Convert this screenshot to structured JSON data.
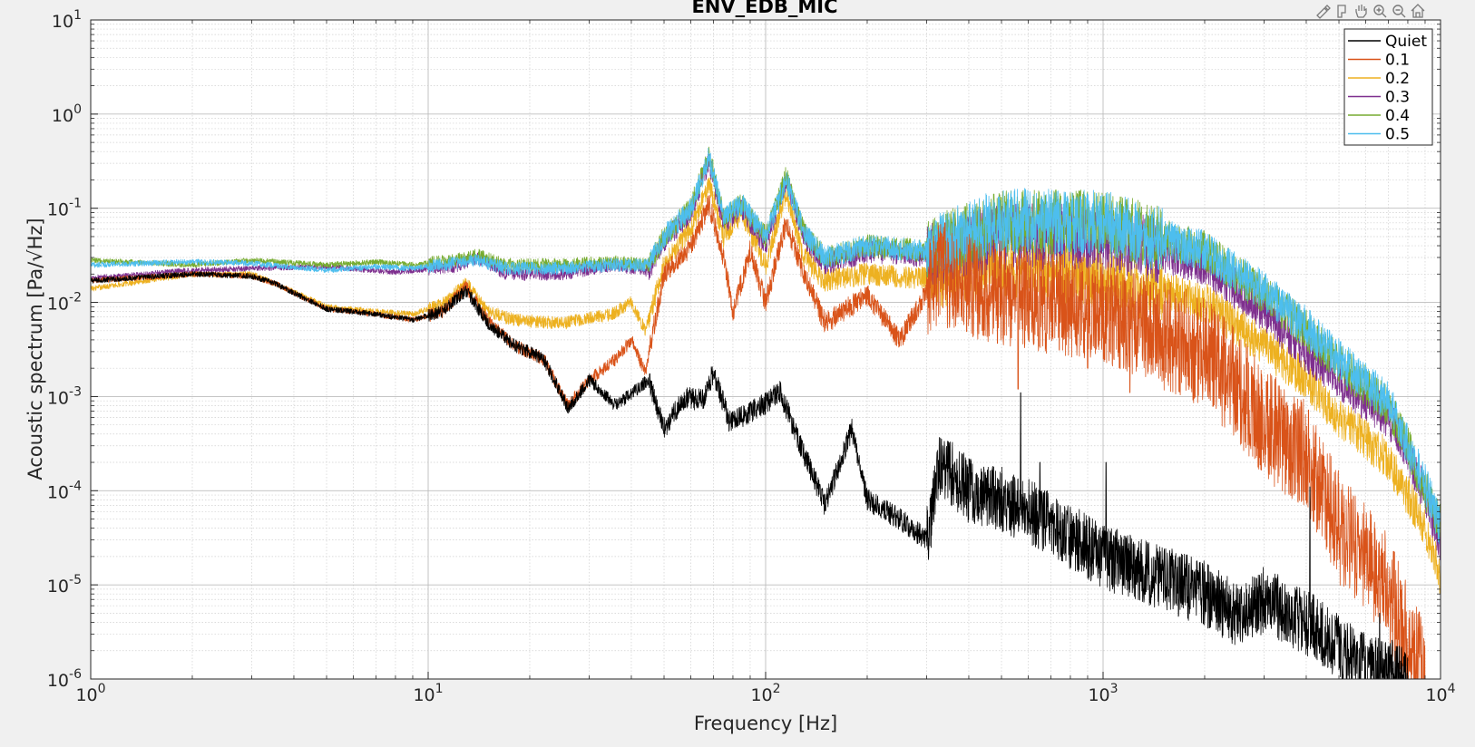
{
  "toolbar": {
    "icons": [
      "brush-icon",
      "datatip-icon",
      "pan-icon",
      "zoom-in-icon",
      "zoom-out-icon",
      "home-icon"
    ]
  },
  "chart_data": {
    "type": "line",
    "title": "ENV_EDB_MIC",
    "xlabel": "Frequency [Hz]",
    "ylabel": "Acoustic spectrum [Pa/√Hz]",
    "x_scale": "log",
    "y_scale": "log",
    "xlim": [
      1,
      10000
    ],
    "ylim": [
      1e-06,
      10
    ],
    "x_ticks": [
      {
        "value": 1,
        "base": "10",
        "exp": "0"
      },
      {
        "value": 10,
        "base": "10",
        "exp": "1"
      },
      {
        "value": 100,
        "base": "10",
        "exp": "2"
      },
      {
        "value": 1000,
        "base": "10",
        "exp": "3"
      },
      {
        "value": 10000,
        "base": "10",
        "exp": "4"
      }
    ],
    "y_ticks": [
      {
        "value": 10,
        "base": "10",
        "exp": "1"
      },
      {
        "value": 1,
        "base": "10",
        "exp": "0"
      },
      {
        "value": 0.1,
        "base": "10",
        "exp": "-1"
      },
      {
        "value": 0.01,
        "base": "10",
        "exp": "-2"
      },
      {
        "value": 0.001,
        "base": "10",
        "exp": "-3"
      },
      {
        "value": 0.0001,
        "base": "10",
        "exp": "-4"
      },
      {
        "value": 1e-05,
        "base": "10",
        "exp": "-5"
      },
      {
        "value": 1e-06,
        "base": "10",
        "exp": "-6"
      }
    ],
    "grid": true,
    "minor_grid": true,
    "legend_position": "top-right",
    "series": [
      {
        "name": "Quiet",
        "color": "#000000",
        "points": [
          [
            1,
            0.017
          ],
          [
            2,
            0.02
          ],
          [
            3,
            0.019
          ],
          [
            3.5,
            0.016
          ],
          [
            5,
            0.0085
          ],
          [
            7,
            0.0075
          ],
          [
            9,
            0.0065
          ],
          [
            11,
            0.008
          ],
          [
            13,
            0.0135
          ],
          [
            15,
            0.006
          ],
          [
            18,
            0.0035
          ],
          [
            22,
            0.0025
          ],
          [
            26,
            0.00075
          ],
          [
            30,
            0.0015
          ],
          [
            36,
            0.0008
          ],
          [
            45,
            0.0015
          ],
          [
            50,
            0.00045
          ],
          [
            58,
            0.001
          ],
          [
            65,
            0.0009
          ],
          [
            70,
            0.0018
          ],
          [
            78,
            0.00055
          ],
          [
            85,
            0.0006
          ],
          [
            100,
            0.00085
          ],
          [
            110,
            0.00115
          ],
          [
            125,
            0.00035
          ],
          [
            150,
            7e-05
          ],
          [
            180,
            0.00045
          ],
          [
            200,
            8e-05
          ],
          [
            250,
            5e-05
          ],
          [
            300,
            3e-05
          ],
          [
            330,
            0.0002
          ],
          [
            400,
            0.0001
          ],
          [
            500,
            8e-05
          ],
          [
            600,
            6e-05
          ],
          [
            1000,
            2e-05
          ],
          [
            1500,
            1.2e-05
          ],
          [
            2000,
            8e-06
          ],
          [
            2600,
            4.5e-06
          ],
          [
            3000,
            7e-06
          ],
          [
            4000,
            4e-06
          ],
          [
            5000,
            2.2e-06
          ],
          [
            6000,
            1.4e-06
          ],
          [
            7000,
            1.2e-06
          ],
          [
            8000,
            1e-06
          ]
        ],
        "spikes": [
          [
            570,
            0.0011
          ],
          [
            650,
            0.0002
          ],
          [
            1020,
            0.0002
          ],
          [
            4100,
            0.00011
          ],
          [
            6600,
            5e-06
          ]
        ]
      },
      {
        "name": "0.1",
        "color": "#d95319",
        "points": [
          [
            1,
            0.017
          ],
          [
            2,
            0.02
          ],
          [
            3,
            0.019
          ],
          [
            3.5,
            0.016
          ],
          [
            5,
            0.0085
          ],
          [
            7,
            0.0075
          ],
          [
            9,
            0.0065
          ],
          [
            11,
            0.008
          ],
          [
            13,
            0.0145
          ],
          [
            15,
            0.0065
          ],
          [
            18,
            0.0035
          ],
          [
            22,
            0.0025
          ],
          [
            26,
            0.0008
          ],
          [
            30,
            0.0015
          ],
          [
            36,
            0.0025
          ],
          [
            40,
            0.004
          ],
          [
            44,
            0.0018
          ],
          [
            50,
            0.02
          ],
          [
            60,
            0.04
          ],
          [
            68,
            0.11
          ],
          [
            75,
            0.03
          ],
          [
            80,
            0.008
          ],
          [
            90,
            0.035
          ],
          [
            100,
            0.01
          ],
          [
            115,
            0.07
          ],
          [
            130,
            0.02
          ],
          [
            150,
            0.006
          ],
          [
            200,
            0.012
          ],
          [
            250,
            0.004
          ],
          [
            320,
            0.02
          ],
          [
            400,
            0.015
          ],
          [
            600,
            0.011
          ],
          [
            1000,
            0.008
          ],
          [
            1500,
            0.0045
          ],
          [
            2000,
            0.003
          ],
          [
            2500,
            0.0013
          ],
          [
            3000,
            0.0005
          ],
          [
            4000,
            0.00025
          ],
          [
            5000,
            4e-05
          ],
          [
            6000,
            1.8e-05
          ],
          [
            7000,
            9e-06
          ],
          [
            8000,
            2.5e-06
          ],
          [
            9000,
            1e-06
          ]
        ],
        "spikes": [
          [
            340,
            0.07
          ],
          [
            560,
            0.0012
          ],
          [
            900,
            0.002
          ],
          [
            1200,
            0.0011
          ]
        ]
      },
      {
        "name": "0.2",
        "color": "#edb120",
        "points": [
          [
            1,
            0.014
          ],
          [
            2,
            0.02
          ],
          [
            3,
            0.02
          ],
          [
            3.5,
            0.016
          ],
          [
            5,
            0.009
          ],
          [
            7,
            0.008
          ],
          [
            9,
            0.0075
          ],
          [
            11,
            0.0095
          ],
          [
            13,
            0.016
          ],
          [
            15,
            0.008
          ],
          [
            18,
            0.0065
          ],
          [
            25,
            0.006
          ],
          [
            35,
            0.0075
          ],
          [
            40,
            0.01
          ],
          [
            44,
            0.005
          ],
          [
            50,
            0.025
          ],
          [
            60,
            0.06
          ],
          [
            68,
            0.18
          ],
          [
            75,
            0.05
          ],
          [
            85,
            0.09
          ],
          [
            100,
            0.025
          ],
          [
            115,
            0.15
          ],
          [
            130,
            0.03
          ],
          [
            150,
            0.017
          ],
          [
            200,
            0.02
          ],
          [
            300,
            0.018
          ],
          [
            500,
            0.025
          ],
          [
            1000,
            0.018
          ],
          [
            2000,
            0.01
          ],
          [
            3000,
            0.0035
          ],
          [
            4000,
            0.0015
          ],
          [
            5000,
            0.0006
          ],
          [
            6000,
            0.00035
          ],
          [
            7000,
            0.00021
          ],
          [
            8000,
            9e-05
          ],
          [
            9000,
            4e-05
          ],
          [
            10000,
            1.2e-05
          ]
        ],
        "spikes": []
      },
      {
        "name": "0.3",
        "color": "#7e2f8e",
        "points": [
          [
            1,
            0.018
          ],
          [
            2,
            0.022
          ],
          [
            3,
            0.023
          ],
          [
            5,
            0.024
          ],
          [
            8,
            0.021
          ],
          [
            12,
            0.024
          ],
          [
            14,
            0.03
          ],
          [
            17,
            0.02
          ],
          [
            25,
            0.02
          ],
          [
            35,
            0.025
          ],
          [
            45,
            0.022
          ],
          [
            50,
            0.045
          ],
          [
            60,
            0.09
          ],
          [
            68,
            0.32
          ],
          [
            75,
            0.07
          ],
          [
            85,
            0.1
          ],
          [
            100,
            0.04
          ],
          [
            115,
            0.2
          ],
          [
            130,
            0.05
          ],
          [
            150,
            0.025
          ],
          [
            200,
            0.035
          ],
          [
            300,
            0.03
          ],
          [
            500,
            0.05
          ],
          [
            1000,
            0.05
          ],
          [
            2000,
            0.025
          ],
          [
            3000,
            0.008
          ],
          [
            4000,
            0.003
          ],
          [
            5000,
            0.0015
          ],
          [
            6000,
            0.0009
          ],
          [
            7000,
            0.0006
          ],
          [
            8000,
            0.00025
          ],
          [
            9000,
            9e-05
          ],
          [
            10000,
            2.8e-05
          ]
        ],
        "spikes": []
      },
      {
        "name": "0.4",
        "color": "#77ac30",
        "points": [
          [
            1,
            0.028
          ],
          [
            2,
            0.025
          ],
          [
            3,
            0.028
          ],
          [
            5,
            0.025
          ],
          [
            7,
            0.027
          ],
          [
            9,
            0.025
          ],
          [
            12,
            0.028
          ],
          [
            14,
            0.032
          ],
          [
            17,
            0.025
          ],
          [
            25,
            0.025
          ],
          [
            35,
            0.027
          ],
          [
            45,
            0.025
          ],
          [
            50,
            0.05
          ],
          [
            60,
            0.1
          ],
          [
            68,
            0.38
          ],
          [
            75,
            0.08
          ],
          [
            85,
            0.11
          ],
          [
            100,
            0.05
          ],
          [
            115,
            0.22
          ],
          [
            130,
            0.055
          ],
          [
            150,
            0.03
          ],
          [
            200,
            0.04
          ],
          [
            300,
            0.035
          ],
          [
            500,
            0.07
          ],
          [
            1000,
            0.07
          ],
          [
            2000,
            0.035
          ],
          [
            3000,
            0.012
          ],
          [
            4000,
            0.005
          ],
          [
            5000,
            0.0022
          ],
          [
            6000,
            0.0013
          ],
          [
            7000,
            0.0008
          ],
          [
            8000,
            0.0003
          ],
          [
            9000,
            0.0001
          ],
          [
            10000,
            4.5e-05
          ]
        ],
        "spikes": []
      },
      {
        "name": "0.5",
        "color": "#4dbeee",
        "points": [
          [
            1,
            0.025
          ],
          [
            2,
            0.027
          ],
          [
            3,
            0.026
          ],
          [
            5,
            0.022
          ],
          [
            7,
            0.024
          ],
          [
            9,
            0.023
          ],
          [
            12,
            0.026
          ],
          [
            14,
            0.028
          ],
          [
            17,
            0.023
          ],
          [
            25,
            0.023
          ],
          [
            35,
            0.025
          ],
          [
            45,
            0.025
          ],
          [
            50,
            0.05
          ],
          [
            60,
            0.1
          ],
          [
            68,
            0.35
          ],
          [
            75,
            0.08
          ],
          [
            85,
            0.11
          ],
          [
            100,
            0.05
          ],
          [
            115,
            0.2
          ],
          [
            130,
            0.055
          ],
          [
            150,
            0.03
          ],
          [
            200,
            0.04
          ],
          [
            300,
            0.035
          ],
          [
            500,
            0.075
          ],
          [
            1000,
            0.07
          ],
          [
            2000,
            0.035
          ],
          [
            3000,
            0.013
          ],
          [
            4000,
            0.0055
          ],
          [
            5000,
            0.0025
          ],
          [
            6000,
            0.0014
          ],
          [
            7000,
            0.0009
          ],
          [
            8000,
            0.0003
          ],
          [
            9000,
            0.00012
          ],
          [
            10000,
            4e-05
          ]
        ],
        "spikes": []
      }
    ]
  }
}
